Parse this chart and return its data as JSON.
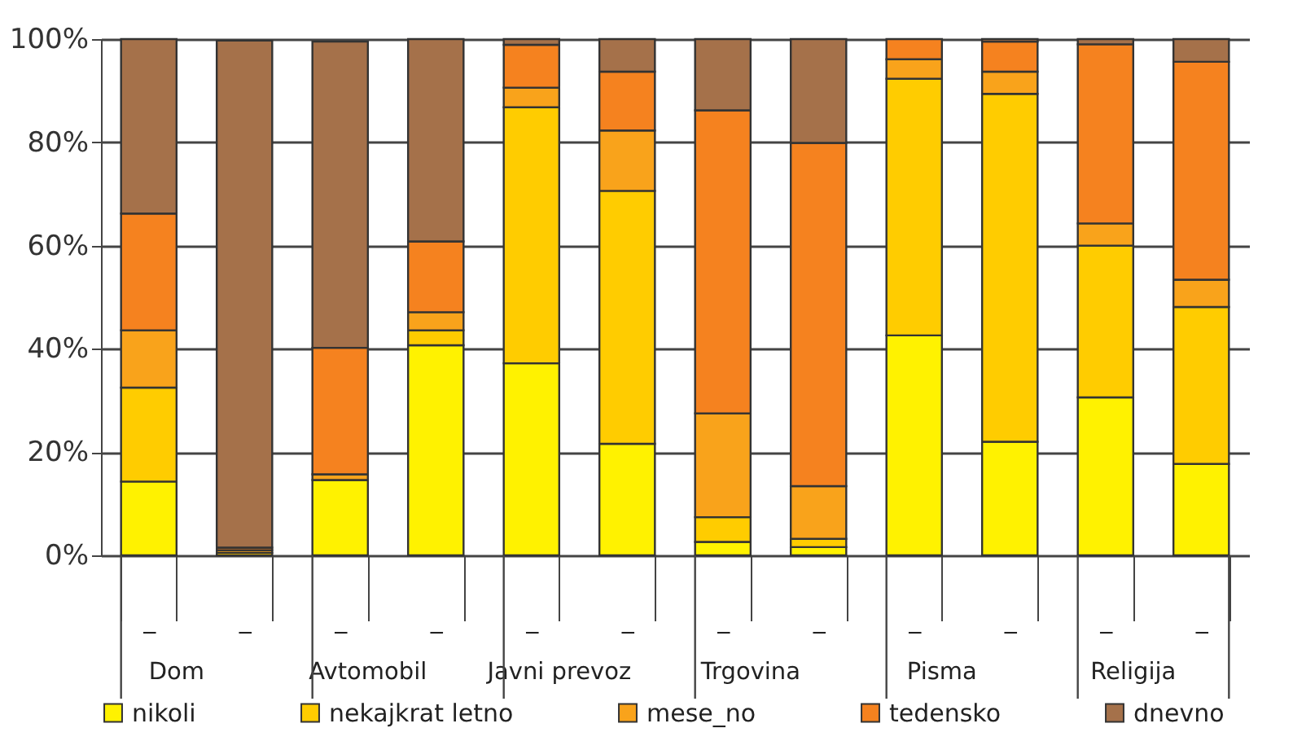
{
  "chart_data": {
    "type": "bar",
    "stacked": true,
    "categories": [
      "_",
      "_",
      "_",
      "_",
      "_",
      "_",
      "_",
      "_",
      "_",
      "_",
      "_",
      "_"
    ],
    "annotations": [
      "Dom",
      "Avtomobil",
      "Javni prevoz",
      "Trgovina",
      "Pisma",
      "Religija"
    ],
    "series": [
      {
        "name": "nikoli",
        "color": "#fff200",
        "values": [
          14.3,
          null,
          14.6,
          40.7,
          37.2,
          21.6,
          2.6,
          1.6,
          42.6,
          22.0,
          30.6,
          17.7
        ]
      },
      {
        "name": "nekajkrat letno",
        "color": "#ffcc00",
        "values": [
          18.2,
          0.5,
          null,
          2.9,
          49.6,
          49.0,
          4.8,
          1.6,
          49.7,
          67.4,
          29.4,
          30.4
        ]
      },
      {
        "name": "mese_no",
        "color": "#f9a31b",
        "values": [
          11.1,
          0.5,
          1.1,
          3.5,
          3.8,
          11.7,
          20.1,
          10.2,
          3.8,
          4.3,
          4.3,
          5.3
        ]
      },
      {
        "name": "tedensko",
        "color": "#f5821f",
        "values": [
          22.6,
          0.5,
          24.5,
          13.7,
          8.3,
          11.4,
          58.7,
          66.5,
          3.9,
          5.8,
          34.7,
          42.2
        ]
      },
      {
        "name": "dnevno",
        "color": "#a5714a",
        "values": [
          33.8,
          98.2,
          59.3,
          39.2,
          1.1,
          6.3,
          13.8,
          20.1,
          0.0,
          0.5,
          1.0,
          4.4
        ]
      }
    ],
    "ylim": [
      0,
      100
    ],
    "yticks": [
      {
        "value": 0,
        "label": "0%"
      },
      {
        "value": 20,
        "label": "20%"
      },
      {
        "value": 40,
        "label": "40%"
      },
      {
        "value": 60,
        "label": "60%"
      },
      {
        "value": 80,
        "label": "80%"
      },
      {
        "value": 100,
        "label": "100%"
      }
    ],
    "grid": "y",
    "legend": "bottom"
  }
}
